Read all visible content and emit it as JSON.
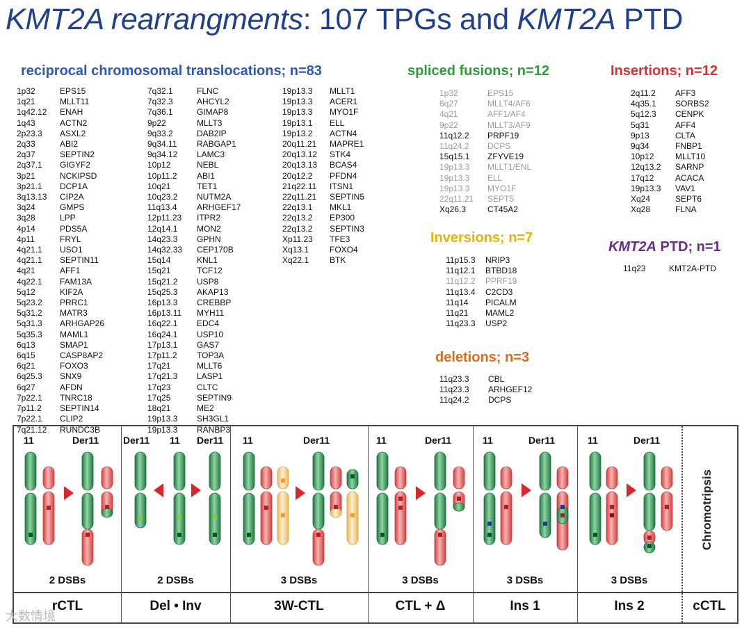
{
  "title": {
    "p1": "KMT2A rearrangments",
    "p2": ": 107 TPGs and ",
    "p3": "KMT2A",
    "p4": " PTD"
  },
  "colors": {
    "title": "#1f3f8f",
    "reciprocal": "#2e59b3",
    "spliced": "#2e9a3a",
    "insertions": "#d43030",
    "inversions": "#e8b400",
    "deletions": "#e06a1a",
    "ptd": "#6a2b8f",
    "green": "#2e8f4f",
    "red": "#e05a5a",
    "yellow": "#f3cc80"
  },
  "sections": {
    "reciprocal": "reciprocal chromosomal translocations; n=83",
    "spliced": "spliced fusions; n=12",
    "insertions": "Insertions; n=12",
    "inversions": "Inversions; n=7",
    "deletions": "deletions; n=3",
    "ptd_a": "KMT2A",
    "ptd_b": " PTD; n=1"
  },
  "reciprocal_col1": [
    [
      "1p32",
      "EPS15"
    ],
    [
      "1q21",
      "MLLT11"
    ],
    [
      "1q42.12",
      "ENAH"
    ],
    [
      "1q43",
      "ACTN2"
    ],
    [
      "2p23.3",
      "ASXL2"
    ],
    [
      "2q33",
      "ABI2"
    ],
    [
      "2q37",
      "SEPTIN2"
    ],
    [
      "2q37.1",
      "GIGYF2"
    ],
    [
      "3p21",
      "NCKIPSD"
    ],
    [
      "3p21.1",
      "DCP1A"
    ],
    [
      "3q13.13",
      "CIP2A"
    ],
    [
      "3q24",
      "GMPS"
    ],
    [
      "3q28",
      "LPP"
    ],
    [
      "4p14",
      "PDS5A"
    ],
    [
      "4p11",
      "FRYL"
    ],
    [
      "4q21.1",
      "USO1"
    ],
    [
      "4q21.1",
      "SEPTIN11"
    ],
    [
      "4q21",
      "AFF1"
    ],
    [
      "4q22.1",
      "FAM13A"
    ],
    [
      "5q12",
      "KIF2A"
    ],
    [
      "5q23.2",
      "PRRC1"
    ],
    [
      "5q31.2",
      "MATR3"
    ],
    [
      "5q31.3",
      "ARHGAP26"
    ],
    [
      "5q35.3",
      "MAML1"
    ],
    [
      "6q13",
      "SMAP1"
    ],
    [
      "6q15",
      "CASP8AP2"
    ],
    [
      "6q21",
      "FOXO3"
    ],
    [
      "6q25.3",
      "SNX9"
    ],
    [
      "6q27",
      "AFDN"
    ],
    [
      "7p22.1",
      "TNRC18"
    ],
    [
      "7p11.2",
      "SEPTIN14"
    ],
    [
      "7p22.1",
      "CLIP2"
    ],
    [
      "7q21.12",
      "RUNDC3B"
    ]
  ],
  "reciprocal_col2": [
    [
      "7q32.1",
      "FLNC"
    ],
    [
      "7q32.3",
      "AHCYL2"
    ],
    [
      "7q36.1",
      "GIMAP8"
    ],
    [
      "9p22",
      "MLLT3"
    ],
    [
      "9q33.2",
      "DAB2IP"
    ],
    [
      "9q34.11",
      "RABGAP1"
    ],
    [
      "9q34.12",
      "LAMC3"
    ],
    [
      "10p12",
      "NEBL"
    ],
    [
      "10p11.2",
      "ABI1"
    ],
    [
      "10q21",
      "TET1"
    ],
    [
      "10q23.2",
      "NUTM2A"
    ],
    [
      "11q13.4",
      "ARHGEF17"
    ],
    [
      "12p11.23",
      "ITPR2"
    ],
    [
      "12q14.1",
      "MON2"
    ],
    [
      "14q23.3",
      "GPHN"
    ],
    [
      "14q32.33",
      "CEP170B"
    ],
    [
      "15q14",
      "KNL1"
    ],
    [
      "15q21",
      "TCF12"
    ],
    [
      "15q21.2",
      "USP8"
    ],
    [
      "15q25.3",
      "AKAP13"
    ],
    [
      "16p13.3",
      "CREBBP"
    ],
    [
      "16p13.11",
      "MYH11"
    ],
    [
      "16q22.1",
      "EDC4"
    ],
    [
      "16q24.1",
      "USP10"
    ],
    [
      "17p13.1",
      "GAS7"
    ],
    [
      "17p11.2",
      "TOP3A"
    ],
    [
      "17q21",
      "MLLT6"
    ],
    [
      "17q21.3",
      "LASP1"
    ],
    [
      "17q23",
      "CLTC"
    ],
    [
      "17q25",
      "SEPTIN9"
    ],
    [
      "18q21",
      "ME2"
    ],
    [
      "19p13.3",
      "SH3GL1"
    ],
    [
      "19p13.3",
      "RANBP3"
    ]
  ],
  "reciprocal_col3": [
    [
      "19p13.3",
      "MLLT1"
    ],
    [
      "19p13.3",
      "ACER1"
    ],
    [
      "19p13.3",
      "MYO1F"
    ],
    [
      "19p13.1",
      "ELL"
    ],
    [
      "19p13.2",
      "ACTN4"
    ],
    [
      "20q11.21",
      "MAPRE1"
    ],
    [
      "20q13.12",
      "STK4"
    ],
    [
      "20q13.13",
      "BCAS4"
    ],
    [
      "20q12.2",
      "PFDN4"
    ],
    [
      "21q22.11",
      "ITSN1"
    ],
    [
      "22q11.21",
      "SEPTIN5"
    ],
    [
      "22q13.1",
      "MKL1"
    ],
    [
      "22q13.2",
      "EP300"
    ],
    [
      "22q13.2",
      "SEPTIN3"
    ],
    [
      "Xp11.23",
      "TFE3"
    ],
    [
      "Xq13.1",
      "FOXO4"
    ],
    [
      "Xq22.1",
      "BTK"
    ]
  ],
  "spliced": [
    [
      "1p32",
      "EPS15",
      1
    ],
    [
      "6q27",
      "MLLT4/AF6",
      1
    ],
    [
      "4q21",
      "AFF1/AF4",
      1
    ],
    [
      "9p22",
      "MLLT3/AF9",
      1
    ],
    [
      "11q12.2",
      "PRPF19",
      0
    ],
    [
      "11q24.2",
      "DCPS",
      1
    ],
    [
      "15q15.1",
      "ZFYVE19",
      0
    ],
    [
      "19p13.3",
      "MLLT1/ENL",
      1
    ],
    [
      "19p13.3",
      "ELL",
      1
    ],
    [
      "19p13.3",
      "MYO1F",
      1
    ],
    [
      "22q11.21",
      "SEPT5",
      1
    ],
    [
      "Xq26.3",
      "CT45A2",
      0
    ]
  ],
  "insertions": [
    [
      "2q11.2",
      "AFF3"
    ],
    [
      "4q35.1",
      "SORBS2"
    ],
    [
      "5q12.3",
      "CENPK"
    ],
    [
      "5q31",
      "AFF4"
    ],
    [
      "9p13",
      "CLTA"
    ],
    [
      "9q34",
      "FNBP1"
    ],
    [
      "10p12",
      "MLLT10"
    ],
    [
      "12q13.2",
      "SARNP"
    ],
    [
      "17q12",
      "ACACA"
    ],
    [
      "19p13.3",
      "VAV1"
    ],
    [
      "Xq24",
      "SEPT6"
    ],
    [
      "Xq28",
      "FLNA"
    ]
  ],
  "inversions": [
    [
      "11p15.3",
      "NRIP3",
      0
    ],
    [
      "11q12.1",
      "BTBD18",
      0
    ],
    [
      "11q12.2",
      "PPRF19",
      1
    ],
    [
      "11q13.4",
      "C2CD3",
      0
    ],
    [
      "11q14",
      "PICALM",
      0
    ],
    [
      "11q21",
      "MAML2",
      0
    ],
    [
      "11q23.3",
      "USP2",
      0
    ]
  ],
  "deletions": [
    [
      "11q23.3",
      "CBL"
    ],
    [
      "11q23.3",
      "ARHGEF12"
    ],
    [
      "11q24.2",
      "DCPS"
    ]
  ],
  "ptd": [
    [
      "11q23",
      "KMT2A-PTD"
    ]
  ],
  "diagram": {
    "chr_labels": {
      "p1a": "11",
      "p1b": "Der11",
      "p2a": "Der11",
      "p2b": "11",
      "p2c": "Der11",
      "p3a": "11",
      "p3b": "Der11",
      "p4a": "11",
      "p4b": "Der11",
      "p5a": "11",
      "p5b": "Der11",
      "p6a": "11",
      "p6b": "Der11"
    },
    "dsbs": [
      "2 DSBs",
      "2 DSBs",
      "3 DSBs",
      "3 DSBs",
      "3 DSBs",
      "3 DSBs"
    ],
    "bottom": [
      "rCTL",
      "Del • Inv",
      "3W-CTL",
      "CTL + Δ",
      "Ins 1",
      "Ins 2",
      "cCTL"
    ],
    "chromothripsis": "Chromotripsis"
  },
  "watermark": "大数情境"
}
